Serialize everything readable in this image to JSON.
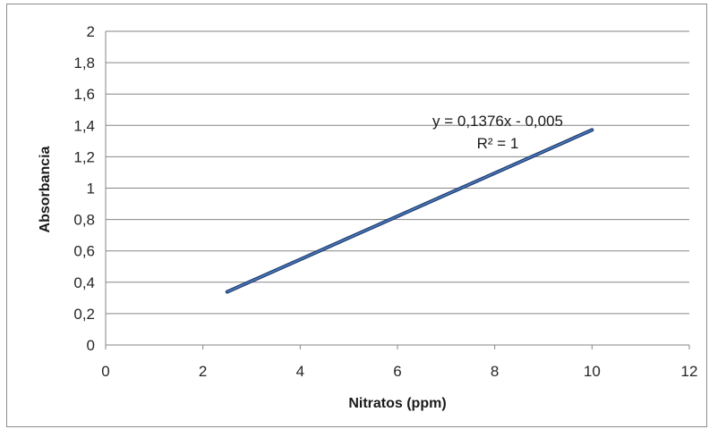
{
  "chart_data": {
    "type": "line",
    "title": "",
    "xlabel": "Nitratos (ppm)",
    "ylabel": "Absorbancia",
    "xlim": [
      0,
      12
    ],
    "ylim": [
      0,
      2
    ],
    "x_ticks": [
      "0",
      "2",
      "4",
      "6",
      "8",
      "10",
      "12"
    ],
    "y_ticks": [
      "0",
      "0,2",
      "0,4",
      "0,6",
      "0,8",
      "1",
      "1,2",
      "1,4",
      "1,6",
      "1,8",
      "2"
    ],
    "grid": true,
    "legend": "none",
    "series": [
      {
        "x": [
          2.5,
          10
        ],
        "y": [
          0.339,
          1.371
        ],
        "color": "#1f3b73",
        "trendline_color": "#4f81bd"
      }
    ],
    "annotations": {
      "equation": "y = 0,1376x - 0,005",
      "r_squared": "R² = 1"
    }
  }
}
